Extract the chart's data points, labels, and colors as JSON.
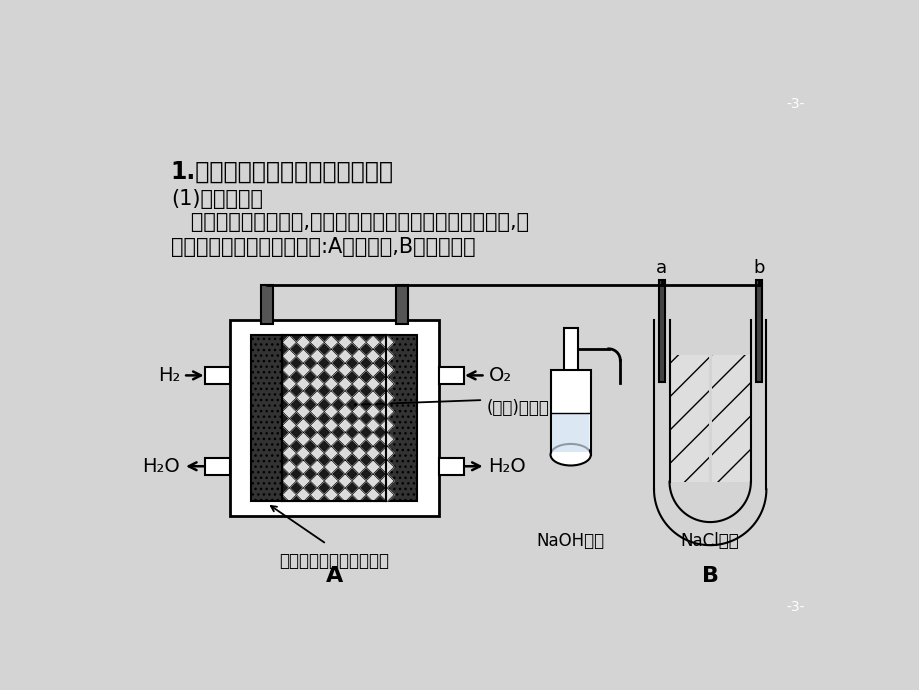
{
  "bg_color": "#d4d4d4",
  "title_text": "1.多池串联装置中电池类型的判断",
  "sub1_text": "(1)直接判断。",
  "body_text1": "   非常直观明显的装置,如燃料电池、铅蓄电池等在电路中时,则",
  "body_text2": "其他装置为电解池。如下图:A为原电池,B为电解池。",
  "page_num": "-3-",
  "font_size_title": 17,
  "font_size_body": 15,
  "diagram_label_A": "A",
  "diagram_label_B": "B",
  "label_H2": "H₂",
  "label_O2": "O₂",
  "label_H2O_left": "H₂O",
  "label_H2O_right": "H₂O",
  "label_electrolyte": "(磷酸)电解质",
  "label_electrode": "含金属催化剂的多孔电极",
  "label_NaOH": "NaOH溶液",
  "label_NaCl": "NaCl溶液",
  "label_a": "a",
  "label_b": "b"
}
